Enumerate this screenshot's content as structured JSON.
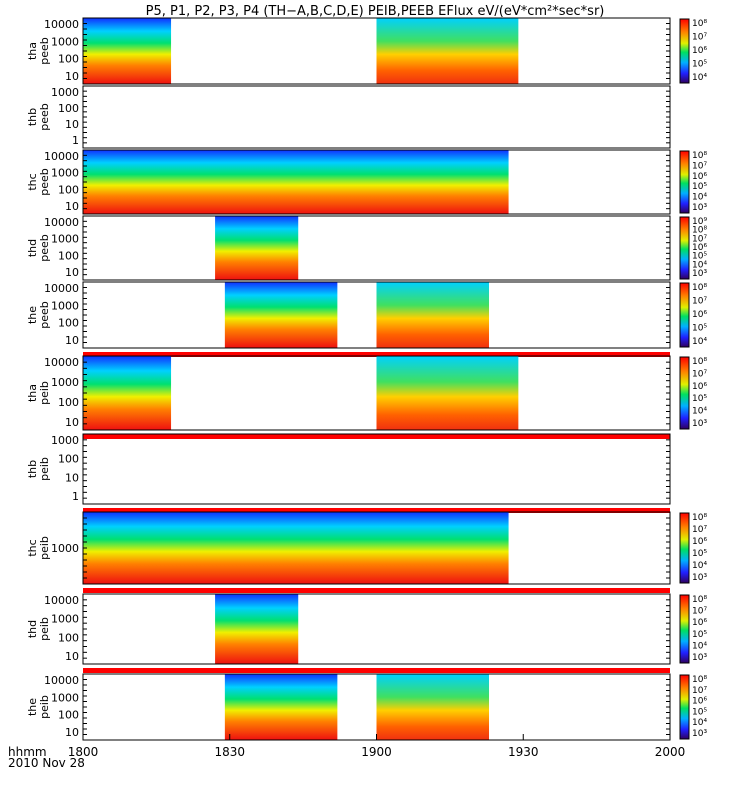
{
  "title": "P5, P1, P2, P3, P4 (TH−A,B,C,D,E) PEIB,PEEB EFlux eV/(eV*cm²*sec*sr)",
  "footer": {
    "hhmm": "hhmm",
    "date": "2010 Nov 28"
  },
  "colors": {
    "frame": "#000000",
    "background": "#ffffff",
    "quality_bar": "#ff0000",
    "quality_bar_alt": "#ffff00"
  },
  "chart_data": {
    "type": "heatmap",
    "x_axis": {
      "range": [
        "18:00",
        "20:00"
      ],
      "ticks": [
        "1800",
        "1830",
        "1900",
        "1930",
        "2000"
      ]
    },
    "panels": [
      {
        "label": [
          "tha",
          "peeb"
        ],
        "yticks": [
          "10000",
          "1000",
          "100",
          "10"
        ],
        "cbar": [
          "10⁸",
          "10⁷",
          "10⁶",
          "10⁵",
          "10⁴"
        ],
        "coverage": [
          [
            "18:00",
            "18:18"
          ],
          [
            "19:00",
            "19:29"
          ]
        ]
      },
      {
        "label": [
          "thb",
          "peeb"
        ],
        "yticks": [
          "1000",
          "100",
          "10",
          "1"
        ],
        "cbar": [],
        "coverage": []
      },
      {
        "label": [
          "thc",
          "peeb"
        ],
        "yticks": [
          "10000",
          "1000",
          "100",
          "10"
        ],
        "cbar": [
          "10⁸",
          "10⁷",
          "10⁶",
          "10⁵",
          "10⁴",
          "10³"
        ],
        "coverage": [
          [
            "18:00",
            "19:27"
          ]
        ]
      },
      {
        "label": [
          "thd",
          "peeb"
        ],
        "yticks": [
          "10000",
          "1000",
          "100",
          "10"
        ],
        "cbar": [
          "10⁹",
          "10⁸",
          "10⁷",
          "10⁶",
          "10⁵",
          "10⁴",
          "10³"
        ],
        "coverage": [
          [
            "18:27",
            "18:44"
          ]
        ]
      },
      {
        "label": [
          "the",
          "peeb"
        ],
        "yticks": [
          "10000",
          "1000",
          "100",
          "10"
        ],
        "cbar": [
          "10⁸",
          "10⁷",
          "10⁶",
          "10⁵",
          "10⁴"
        ],
        "coverage": [
          [
            "18:29",
            "18:52"
          ],
          [
            "19:00",
            "19:23"
          ]
        ]
      },
      {
        "label": [
          "tha",
          "peib"
        ],
        "yticks": [
          "10000",
          "1000",
          "100",
          "10"
        ],
        "cbar": [
          "10⁸",
          "10⁷",
          "10⁶",
          "10⁵",
          "10⁴",
          "10³"
        ],
        "coverage": [
          [
            "18:00",
            "18:18"
          ],
          [
            "19:00",
            "19:29"
          ]
        ]
      },
      {
        "label": [
          "thb",
          "peib"
        ],
        "yticks": [
          "1000",
          "100",
          "10",
          "1"
        ],
        "cbar": [],
        "coverage": []
      },
      {
        "label": [
          "thc",
          "peib"
        ],
        "yticks": [
          "1000"
        ],
        "cbar": [
          "10⁸",
          "10⁷",
          "10⁶",
          "10⁵",
          "10⁴",
          "10³"
        ],
        "coverage": [
          [
            "18:00",
            "19:27"
          ]
        ]
      },
      {
        "label": [
          "thd",
          "peib"
        ],
        "yticks": [
          "10000",
          "1000",
          "100",
          "10"
        ],
        "cbar": [
          "10⁸",
          "10⁷",
          "10⁶",
          "10⁵",
          "10⁴",
          "10³"
        ],
        "coverage": [
          [
            "18:27",
            "18:44"
          ]
        ]
      },
      {
        "label": [
          "the",
          "peib"
        ],
        "yticks": [
          "10000",
          "1000",
          "100",
          "10"
        ],
        "cbar": [
          "10⁸",
          "10⁷",
          "10⁶",
          "10⁵",
          "10⁴",
          "10³"
        ],
        "coverage": [
          [
            "18:29",
            "18:52"
          ],
          [
            "19:00",
            "19:23"
          ]
        ]
      }
    ]
  }
}
